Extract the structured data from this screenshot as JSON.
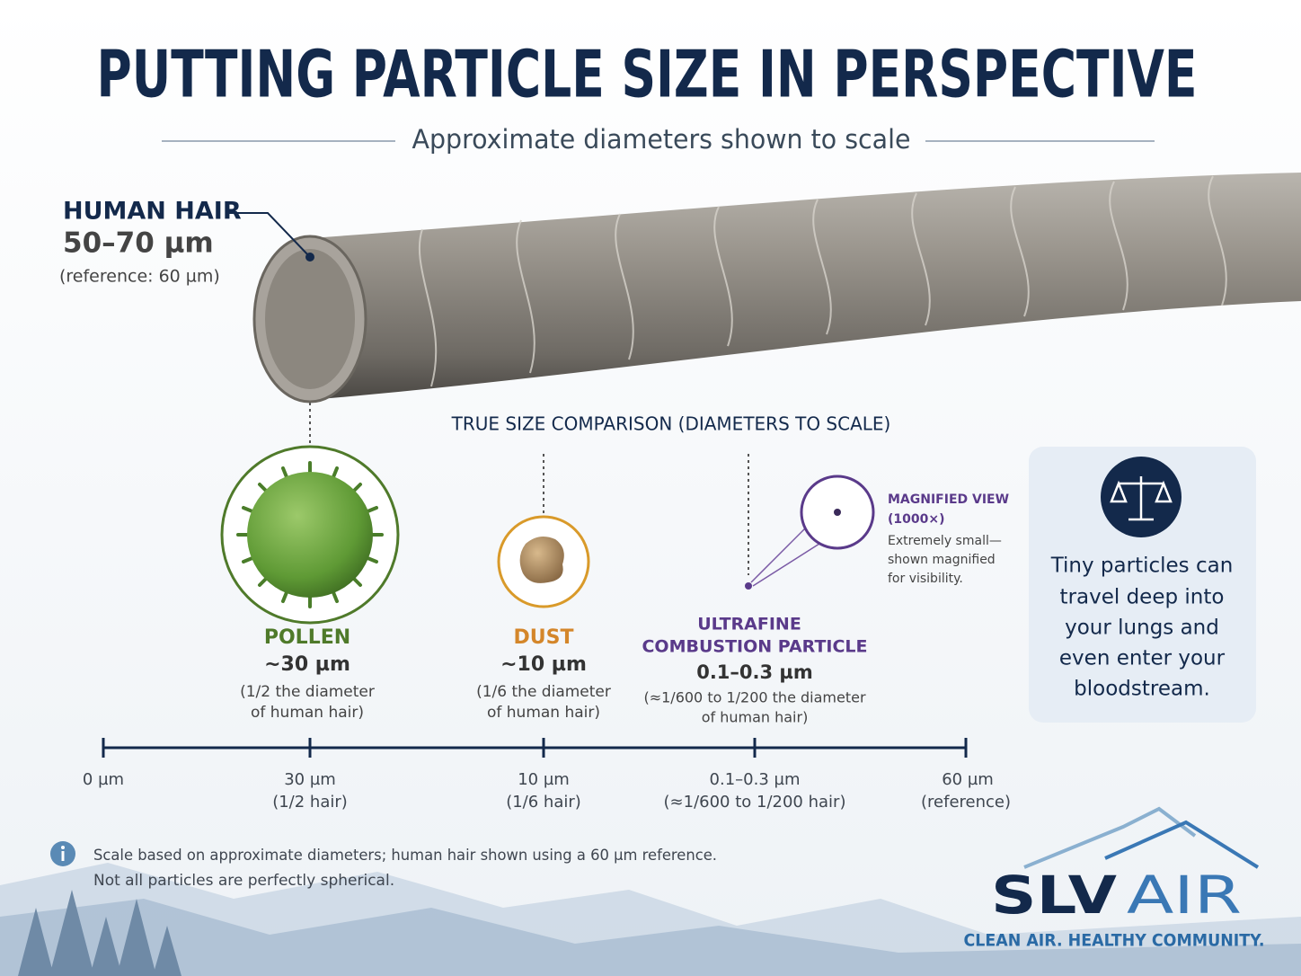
{
  "header": {
    "title": "PUTTING PARTICLE SIZE IN PERSPECTIVE",
    "subtitle": "Approximate diameters shown to scale"
  },
  "hair": {
    "label": "HUMAN HAIR",
    "size": "50–70 µm",
    "note": "(reference: 60 µm)"
  },
  "comparison_title": "TRUE SIZE COMPARISON (DIAMETERS TO SCALE)",
  "particles": [
    {
      "name": [
        "POLLEN"
      ],
      "size": "~30 µm",
      "note": [
        "(1/2 the diameter",
        "of human hair)"
      ]
    },
    {
      "name": [
        "DUST"
      ],
      "size": "~10 µm",
      "note": [
        "(1/6 the diameter",
        "of human hair)"
      ]
    },
    {
      "name": [
        "ULTRAFINE",
        "COMBUSTION PARTICLE"
      ],
      "size": "0.1–0.3 µm",
      "note": [
        "(≈1/600 to 1/200 the diameter",
        "of human hair)"
      ]
    }
  ],
  "magnified": {
    "title": [
      "MAGNIFIED VIEW",
      "(1000×)"
    ],
    "note": [
      "Extremely small—",
      "shown magnified",
      "for visibility."
    ]
  },
  "scale": {
    "ticks": [
      {
        "label": [
          "0 µm"
        ]
      },
      {
        "label": [
          "30 µm",
          "(1/2 hair)"
        ]
      },
      {
        "label": [
          "10 µm",
          "(1/6 hair)"
        ]
      },
      {
        "label": [
          "0.1–0.3 µm",
          "(≈1/600 to 1/200 hair)"
        ]
      },
      {
        "label": [
          "60 µm",
          "(reference)"
        ]
      }
    ]
  },
  "callout": [
    "Tiny particles can",
    "travel deep into",
    "your lungs and",
    "even enter your",
    "bloodstream."
  ],
  "footnote": [
    "Scale based on approximate diameters; human hair shown using a 60 µm reference.",
    "Not all particles are perfectly spherical."
  ],
  "brand": {
    "name": "SLV",
    "name2": "AIR",
    "tagline": "CLEAN AIR. HEALTHY COMMUNITY."
  }
}
